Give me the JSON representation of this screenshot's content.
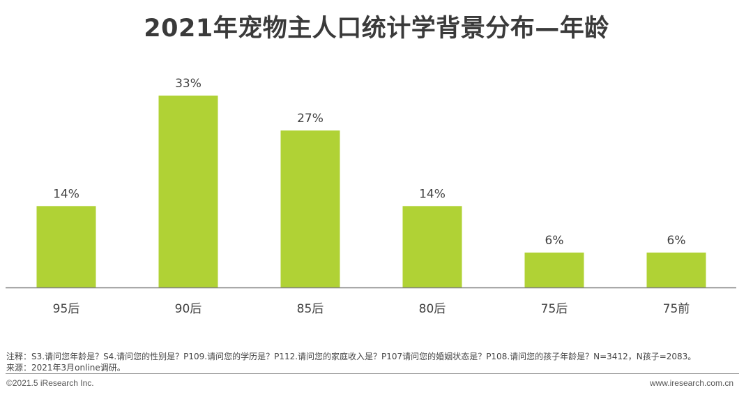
{
  "title": "2021年宠物主人口统计学背景分布—年龄",
  "notes": {
    "line1": "注释：S3.请问您年龄是？S4.请问您的性别是？P109.请问您的学历是？P112.请问您的家庭收入是？P107请问您的婚姻状态是？P108.请问您的孩子年龄是？N=3412，N孩子=2083。",
    "line2": "来源：2021年3月online调研。"
  },
  "footer": {
    "copyright": "©2021.5 iResearch Inc.",
    "website": "www.iresearch.com.cn"
  },
  "colors": {
    "bar": "#b0d235",
    "axis": "#7f7f7f"
  },
  "chart_data": {
    "type": "bar",
    "categories": [
      "95后",
      "90后",
      "85后",
      "80后",
      "75后",
      "75前"
    ],
    "values": [
      14,
      33,
      27,
      14,
      6,
      6
    ],
    "data_labels": [
      "14%",
      "33%",
      "27%",
      "14%",
      "6%",
      "6%"
    ],
    "unit": "%",
    "ylim": [
      0,
      33
    ],
    "grid": false,
    "legend": "none"
  }
}
